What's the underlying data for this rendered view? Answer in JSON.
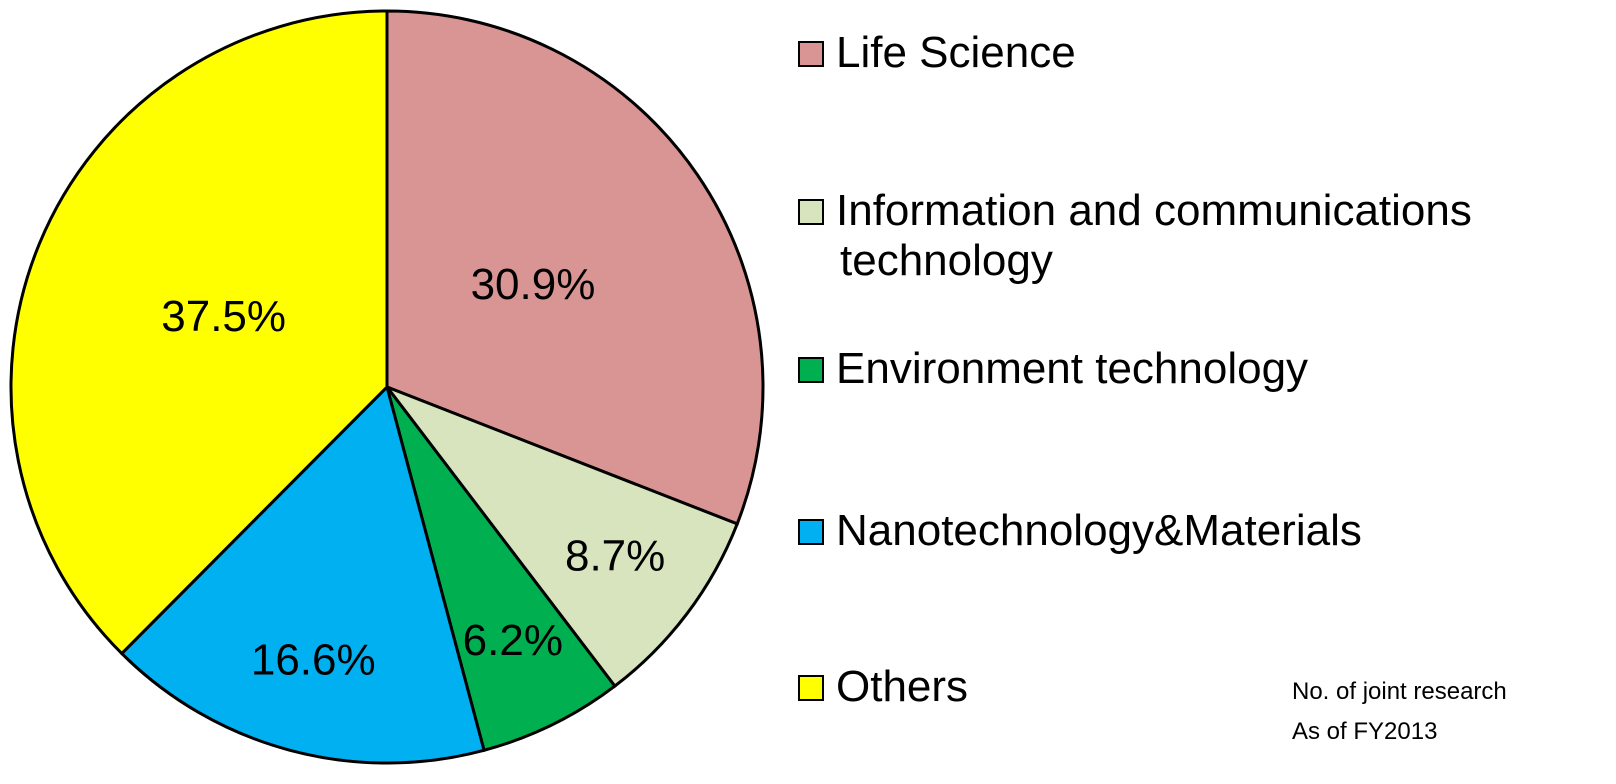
{
  "chart_data": {
    "type": "pie",
    "categories": [
      "Life Science",
      "Information and communications technology",
      "Environment technology",
      "Nanotechnology&Materials",
      "Others"
    ],
    "values": [
      30.9,
      8.7,
      6.2,
      16.6,
      37.5
    ],
    "value_labels": [
      "30.9%",
      "8.7%",
      "6.2%",
      "16.6%",
      "37.5%"
    ],
    "colors": [
      "#d99594",
      "#d7e4bd",
      "#00b050",
      "#00b0f0",
      "#ffff00"
    ],
    "notes": [
      "No. of joint research",
      "As of FY2013"
    ]
  }
}
